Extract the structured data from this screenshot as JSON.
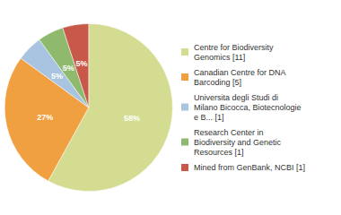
{
  "chart_data": {
    "type": "pie",
    "categories": [
      "Centre for Biodiversity\nGenomics [11]",
      "Canadian Centre for DNA\nBarcoding [5]",
      "Universita degli Studi di\nMilano Bicocca, Biotecnologie\ne B... [1]",
      "Research Center in\nBiodiversity and Genetic\nResources [1]",
      "Mined from GenBank, NCBI [1]"
    ],
    "values": [
      58,
      27,
      5,
      5,
      5
    ],
    "value_labels": [
      "58%",
      "27%",
      "5%",
      "5%",
      "5%"
    ],
    "colors": [
      "#d4dc91",
      "#f0a040",
      "#a8c4e0",
      "#8fba6e",
      "#c8584a"
    ],
    "data_labels": true,
    "legend": "right"
  }
}
